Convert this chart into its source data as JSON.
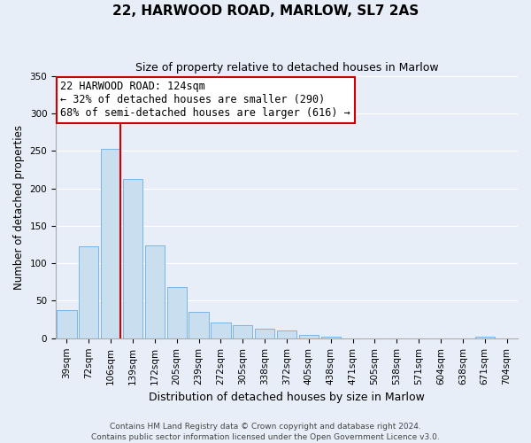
{
  "title": "22, HARWOOD ROAD, MARLOW, SL7 2AS",
  "subtitle": "Size of property relative to detached houses in Marlow",
  "xlabel": "Distribution of detached houses by size in Marlow",
  "ylabel": "Number of detached properties",
  "bar_labels": [
    "39sqm",
    "72sqm",
    "106sqm",
    "139sqm",
    "172sqm",
    "205sqm",
    "239sqm",
    "272sqm",
    "305sqm",
    "338sqm",
    "372sqm",
    "405sqm",
    "438sqm",
    "471sqm",
    "505sqm",
    "538sqm",
    "571sqm",
    "604sqm",
    "638sqm",
    "671sqm",
    "704sqm"
  ],
  "bar_values": [
    38,
    123,
    253,
    212,
    124,
    68,
    35,
    21,
    17,
    13,
    11,
    5,
    2,
    0,
    0,
    0,
    0,
    0,
    0,
    2,
    0
  ],
  "bar_color": "#c9dff0",
  "bar_edge_color": "#6aade4",
  "property_line_label": "22 HARWOOD ROAD: 124sqm",
  "annotation_smaller": "← 32% of detached houses are smaller (290)",
  "annotation_larger": "68% of semi-detached houses are larger (616) →",
  "ylim": [
    0,
    350
  ],
  "yticks": [
    0,
    50,
    100,
    150,
    200,
    250,
    300,
    350
  ],
  "line_color": "#cc0000",
  "annotation_box_color": "#ffffff",
  "annotation_box_edge": "#cc0000",
  "footnote1": "Contains HM Land Registry data © Crown copyright and database right 2024.",
  "footnote2": "Contains public sector information licensed under the Open Government Licence v3.0.",
  "bg_color": "#e8eef8",
  "grid_color": "#ffffff",
  "title_fontsize": 11,
  "subtitle_fontsize": 9,
  "ylabel_fontsize": 8.5,
  "xlabel_fontsize": 9,
  "tick_fontsize": 7.5,
  "ann_fontsize": 8.5,
  "footnote_fontsize": 6.5
}
